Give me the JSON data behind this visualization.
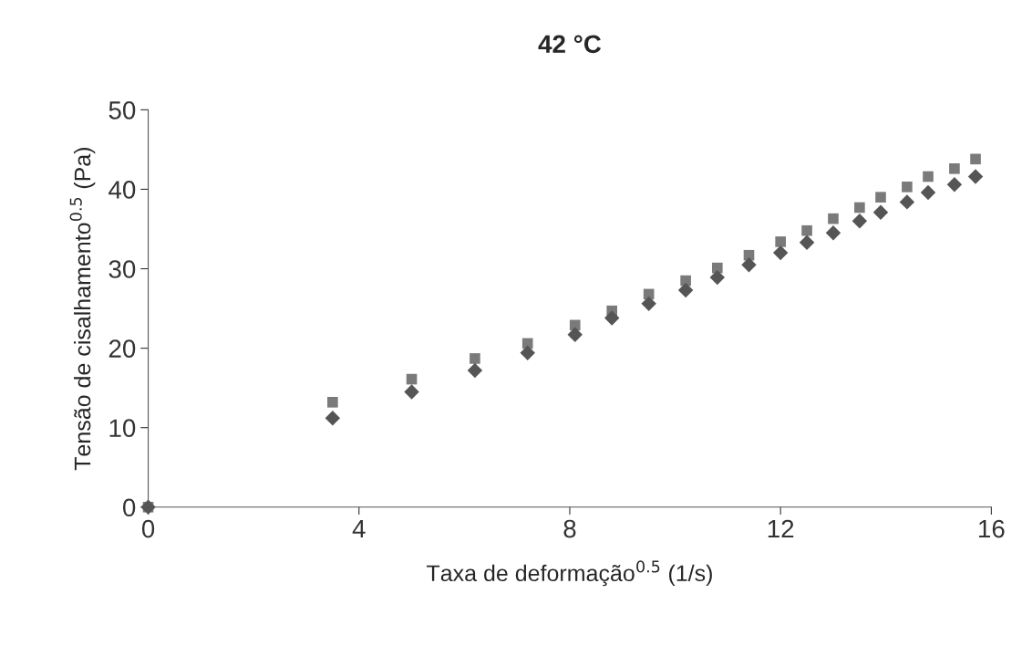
{
  "chart_data": {
    "type": "scatter",
    "title": "42 °C",
    "xlabel": "Taxa de deformação$^{0.5}$ (1/s)",
    "ylabel": "Tensão de cisalhamento$^{0.5}$ (Pa)",
    "xlim": [
      0,
      16
    ],
    "ylim": [
      0,
      50
    ],
    "xticks": [
      0,
      4,
      8,
      12,
      16
    ],
    "yticks": [
      0,
      10,
      20,
      30,
      40,
      50
    ],
    "grid": false,
    "legend": false,
    "x": [
      0,
      3.5,
      5,
      6.2,
      7.2,
      8.1,
      8.8,
      9.5,
      10.2,
      10.8,
      11.4,
      12,
      12.5,
      13,
      13.5,
      13.9,
      14.4,
      14.8,
      15.3,
      15.7
    ],
    "series": [
      {
        "color": "#7a7a7a",
        "marker": "square",
        "values": [
          0,
          13.2,
          16.1,
          18.7,
          20.6,
          22.9,
          24.7,
          26.8,
          28.5,
          30.1,
          31.7,
          33.4,
          34.8,
          36.3,
          37.7,
          39.0,
          40.3,
          41.6,
          42.6,
          43.8
        ]
      },
      {
        "color": "#555555",
        "marker": "diamond",
        "values": [
          0,
          11.2,
          14.5,
          17.2,
          19.4,
          21.7,
          23.8,
          25.6,
          27.3,
          28.9,
          30.5,
          32.0,
          33.3,
          34.5,
          36.0,
          37.1,
          38.4,
          39.6,
          40.6,
          41.6
        ]
      }
    ]
  }
}
